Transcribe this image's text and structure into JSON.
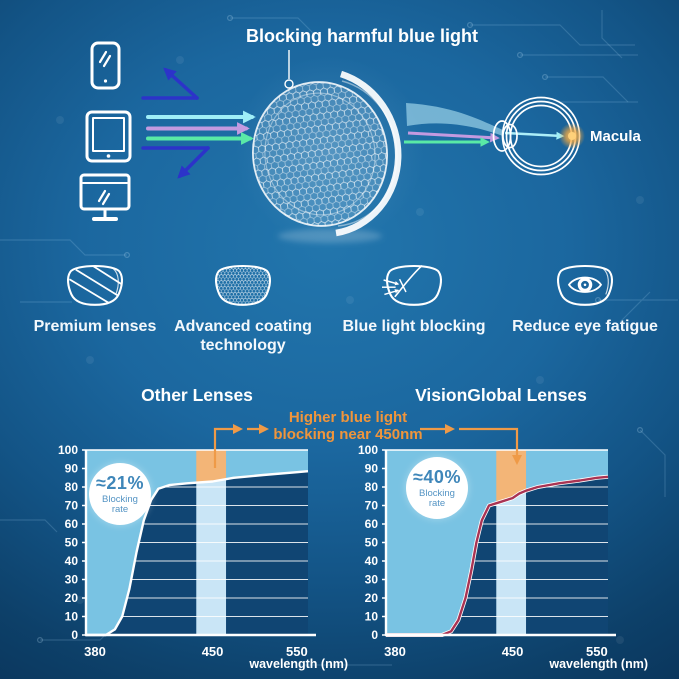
{
  "colors": {
    "accent_orange": "#ef9a47",
    "annotation_text": "#f0953b",
    "sky_fill": "#79c3e3",
    "band_fill": "#c9e5f6",
    "band_highlight": "#f3b577",
    "plot_bg": "#104573",
    "badge_value_text": "#3e86b9",
    "badge_caption_text": "#5494c4",
    "ray_cyan": "#9feef7",
    "ray_pink": "#c39ae0",
    "ray_green": "#59e9a6",
    "ray_reflected_indigo": "#2c33c9",
    "macula_glow": "#f5a93f"
  },
  "hero": {
    "title": "Blocking harmful blue light",
    "macula_label": "Macula",
    "device_icons": [
      "smartphone-icon",
      "tablet-icon",
      "monitor-icon"
    ]
  },
  "features": {
    "items": [
      {
        "icon": "premium-lens-icon",
        "label": "Premium lenses"
      },
      {
        "icon": "coating-mesh-lens-icon",
        "label": "Advanced coating technology"
      },
      {
        "icon": "blue-light-block-lens-icon",
        "label": "Blue light blocking"
      },
      {
        "icon": "eye-in-lens-icon",
        "label": "Reduce eye fatigue"
      }
    ]
  },
  "comparison": {
    "annotation_line1": "Higher blue light",
    "annotation_line2": "blocking near 450nm"
  },
  "chart_data": [
    {
      "type": "area",
      "title": "Other Lenses",
      "badge_value": "≈21%",
      "badge_caption": "Blocking rate",
      "xlabel": "wavelength (nm)",
      "x_ticks": [
        380,
        450,
        550
      ],
      "y_ticks": [
        0,
        10,
        20,
        30,
        40,
        50,
        60,
        70,
        80,
        90,
        100
      ],
      "xlim": [
        380,
        563
      ],
      "ylim": [
        0,
        100
      ],
      "grid": "horizontal-white",
      "highlight_band_nm": [
        441,
        466
      ],
      "curve_color": "#ffffff",
      "curve_outline": null,
      "series": [
        {
          "name": "blocking rate (%)",
          "points": [
            [
              380,
              0
            ],
            [
              391,
              0
            ],
            [
              396,
              3
            ],
            [
              400,
              10
            ],
            [
              404,
              25
            ],
            [
              408,
              45
            ],
            [
              412,
              62
            ],
            [
              416,
              73
            ],
            [
              420,
              79
            ],
            [
              426,
              81
            ],
            [
              436,
              82
            ],
            [
              450,
              83
            ],
            [
              475,
              85
            ],
            [
              510,
              86.5
            ],
            [
              550,
              88
            ]
          ]
        }
      ]
    },
    {
      "type": "area",
      "title": "VisionGlobal Lenses",
      "badge_value": "≈40%",
      "badge_caption": "Blocking rate",
      "xlabel": "wavelength (nm)",
      "x_ticks": [
        380,
        450,
        550
      ],
      "y_ticks": [
        0,
        10,
        20,
        30,
        40,
        50,
        60,
        70,
        80,
        90,
        100
      ],
      "xlim": [
        380,
        563
      ],
      "ylim": [
        0,
        100
      ],
      "grid": "horizontal-white",
      "highlight_band_nm": [
        441,
        466
      ],
      "curve_color": "#a93353",
      "curve_outline": "#ffffff",
      "series": [
        {
          "name": "blocking rate (%)",
          "points": [
            [
              380,
              0
            ],
            [
              411,
              0
            ],
            [
              416,
              2
            ],
            [
              420,
              8
            ],
            [
              424,
              20
            ],
            [
              427,
              34
            ],
            [
              430,
              50
            ],
            [
              433,
              62
            ],
            [
              437,
              70
            ],
            [
              442,
              71.5
            ],
            [
              450,
              74
            ],
            [
              458,
              76.5
            ],
            [
              466,
              78
            ],
            [
              480,
              80
            ],
            [
              505,
              82
            ],
            [
              530,
              83.5
            ],
            [
              550,
              85
            ]
          ]
        }
      ]
    }
  ]
}
